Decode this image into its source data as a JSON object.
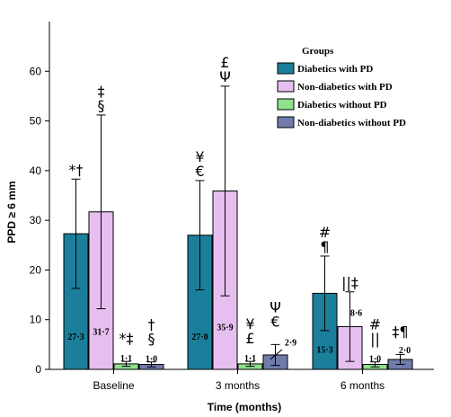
{
  "chart_data": {
    "type": "bar",
    "xlabel": "Time (months)",
    "ylabel": "PPD ≥ 6 mm",
    "ylim": [
      0,
      70
    ],
    "yticks": [
      0,
      10,
      20,
      30,
      40,
      50,
      60
    ],
    "grid": false,
    "legend_title": "Groups",
    "legend_position": "top-right",
    "categories": [
      "Baseline",
      "3 months",
      "6 months"
    ],
    "series": [
      {
        "name": "Diabetics with PD",
        "color": "#1b7f9b",
        "values": [
          27.3,
          27.0,
          15.3
        ],
        "value_labels": [
          "27·3",
          "27·0",
          "15·3"
        ],
        "error_upper": [
          38.3,
          38.0,
          22.8
        ],
        "error_lower": [
          16.3,
          16.0,
          7.8
        ],
        "marks": [
          "*†",
          "¥\n€",
          "#\n¶"
        ]
      },
      {
        "name": "Non-diabetics with PD",
        "color": "#e6bff0",
        "values": [
          31.7,
          35.9,
          8.6
        ],
        "value_labels": [
          "31·7",
          "35·9",
          "8·6"
        ],
        "error_upper": [
          51.2,
          57.0,
          15.6
        ],
        "error_lower": [
          12.2,
          14.8,
          1.6
        ],
        "marks": [
          "‡\n§",
          "£\nΨ",
          "||‡"
        ]
      },
      {
        "name": "Diabetics without PD",
        "color": "#8fe18f",
        "values": [
          1.1,
          1.1,
          1.0
        ],
        "value_labels": [
          "1·1",
          "1·1",
          "1·0"
        ],
        "error_upper": [
          1.6,
          1.6,
          1.5
        ],
        "error_lower": [
          0.6,
          0.6,
          0.5
        ],
        "marks": [
          "*‡",
          "¥\n£",
          "#\n||"
        ]
      },
      {
        "name": "Non-diabetics without PD",
        "color": "#717bab",
        "values": [
          1.0,
          2.9,
          2.0
        ],
        "value_labels": [
          "1·0",
          "2·9",
          "2·0"
        ],
        "error_upper": [
          1.5,
          5.0,
          3.0
        ],
        "error_lower": [
          0.5,
          0.8,
          1.0
        ],
        "marks": [
          "†\n§",
          "Ψ\n€",
          "‡¶"
        ]
      }
    ]
  }
}
